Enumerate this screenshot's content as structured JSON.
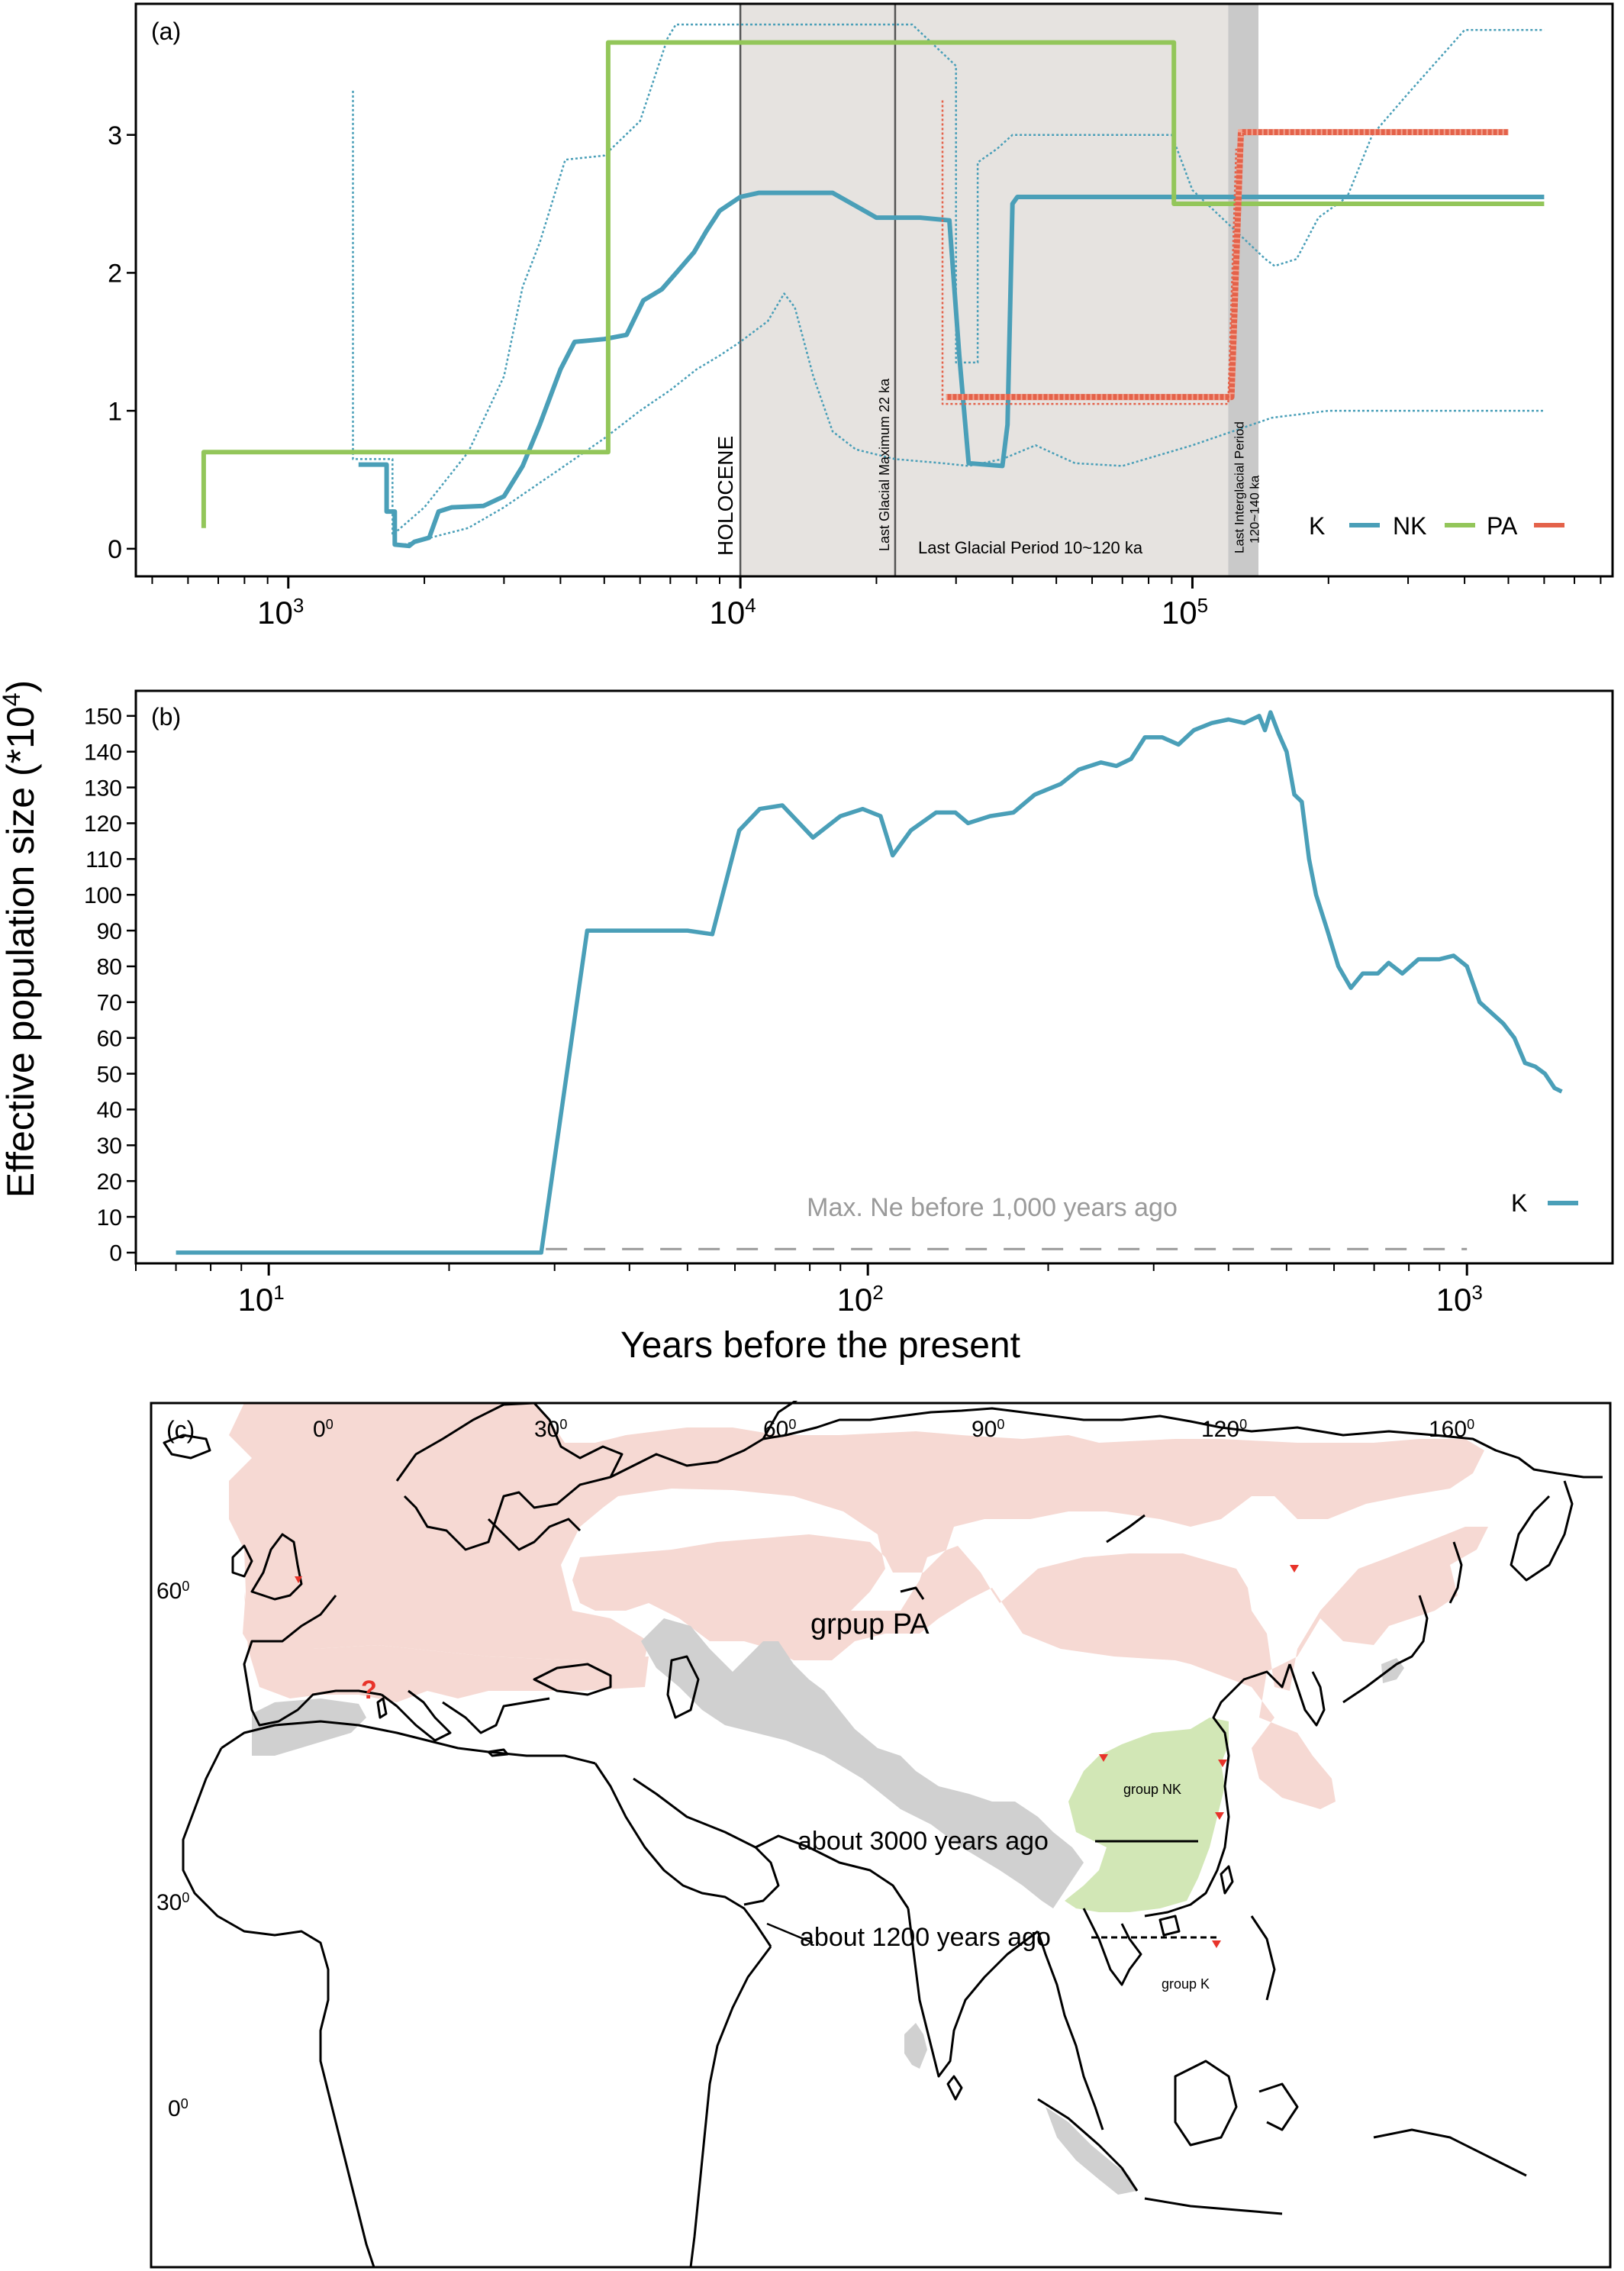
{
  "figure": {
    "ylabel_shared": "Effective population size (*10",
    "ylabel_shared_sup": "4",
    "ylabel_shared_end": ")",
    "xlabel_shared": "Years before the present"
  },
  "chart_data": [
    {
      "panel": "(a)",
      "type": "line",
      "x_scale": "log",
      "xlim": [
        460,
        850000
      ],
      "ylim": [
        -0.2,
        3.95
      ],
      "xticks": [
        {
          "value": 1000,
          "base": "10",
          "exp": "3"
        },
        {
          "value": 10000,
          "base": "10",
          "exp": "4"
        },
        {
          "value": 100000,
          "base": "10",
          "exp": "5"
        }
      ],
      "yticks": [
        0,
        1,
        2,
        3
      ],
      "colors": {
        "K": "#4a9fb8",
        "NK": "#93c65a",
        "PA": "#e4624a",
        "shade": "#e6e3e0",
        "shade_dark": "#c9c9c9"
      },
      "shaded_regions": [
        {
          "from": 10000,
          "to": 120000,
          "label": "Last Glacial Period 10~120 ka"
        },
        {
          "from": 120000,
          "to": 140000,
          "label_line1": "Last Interglacial Period",
          "label_line2": "120~140 ka"
        }
      ],
      "vlines": [
        {
          "x": 10000,
          "label": "HOLOCENE"
        },
        {
          "x": 22000,
          "label": "Last Glacial Maximum 22 ka"
        }
      ],
      "legend": [
        "K",
        "NK",
        "PA"
      ],
      "series": [
        {
          "name": "K",
          "style": "solid",
          "points": [
            [
              1430,
              0.61
            ],
            [
              1650,
              0.61
            ],
            [
              1650,
              0.27
            ],
            [
              1720,
              0.27
            ],
            [
              1720,
              0.03
            ],
            [
              1850,
              0.02
            ],
            [
              1900,
              0.05
            ],
            [
              2050,
              0.08
            ],
            [
              2150,
              0.27
            ],
            [
              2300,
              0.3
            ],
            [
              2700,
              0.31
            ],
            [
              3000,
              0.38
            ],
            [
              3300,
              0.6
            ],
            [
              3600,
              0.9
            ],
            [
              4000,
              1.3
            ],
            [
              4300,
              1.5
            ],
            [
              5000,
              1.52
            ],
            [
              5600,
              1.55
            ],
            [
              6100,
              1.8
            ],
            [
              6700,
              1.88
            ],
            [
              7300,
              2.02
            ],
            [
              7900,
              2.15
            ],
            [
              8400,
              2.3
            ],
            [
              9000,
              2.45
            ],
            [
              10000,
              2.55
            ],
            [
              11000,
              2.58
            ],
            [
              16000,
              2.58
            ],
            [
              20000,
              2.4
            ],
            [
              25000,
              2.4
            ],
            [
              29000,
              2.38
            ],
            [
              30500,
              1.4
            ],
            [
              32000,
              0.62
            ],
            [
              38000,
              0.6
            ],
            [
              39000,
              0.9
            ],
            [
              40000,
              2.5
            ],
            [
              41000,
              2.55
            ],
            [
              70000,
              2.55
            ],
            [
              600000,
              2.55
            ]
          ]
        },
        {
          "name": "K upper CI",
          "style": "dotted",
          "points": [
            [
              1390,
              3.32
            ],
            [
              1390,
              0.65
            ],
            [
              1700,
              0.65
            ],
            [
              1700,
              0.1
            ],
            [
              2000,
              0.3
            ],
            [
              2500,
              0.7
            ],
            [
              3000,
              1.25
            ],
            [
              3300,
              1.9
            ],
            [
              3600,
              2.22
            ],
            [
              4100,
              2.82
            ],
            [
              5000,
              2.85
            ],
            [
              6000,
              3.1
            ],
            [
              6900,
              3.7
            ],
            [
              7200,
              3.8
            ],
            [
              24000,
              3.8
            ],
            [
              30000,
              3.5
            ],
            [
              30000,
              1.35
            ],
            [
              33500,
              1.35
            ],
            [
              33500,
              2.8
            ],
            [
              37000,
              2.9
            ],
            [
              40000,
              3.0
            ],
            [
              90000,
              3.0
            ],
            [
              100000,
              2.6
            ],
            [
              145000,
              2.1
            ],
            [
              152000,
              2.05
            ],
            [
              170000,
              2.1
            ],
            [
              190000,
              2.4
            ],
            [
              220000,
              2.55
            ],
            [
              250000,
              3.0
            ],
            [
              300000,
              3.3
            ],
            [
              400000,
              3.76
            ],
            [
              600000,
              3.76
            ]
          ]
        },
        {
          "name": "K lower CI",
          "style": "dotted",
          "points": [
            [
              1800,
              0.03
            ],
            [
              2500,
              0.15
            ],
            [
              3000,
              0.3
            ],
            [
              3500,
              0.45
            ],
            [
              4000,
              0.58
            ],
            [
              5000,
              0.8
            ],
            [
              6000,
              1.0
            ],
            [
              7000,
              1.15
            ],
            [
              8000,
              1.3
            ],
            [
              9000,
              1.4
            ],
            [
              10000,
              1.5
            ],
            [
              11500,
              1.65
            ],
            [
              12500,
              1.85
            ],
            [
              13200,
              1.75
            ],
            [
              14500,
              1.25
            ],
            [
              16000,
              0.85
            ],
            [
              18000,
              0.72
            ],
            [
              22000,
              0.65
            ],
            [
              28000,
              0.62
            ],
            [
              32000,
              0.6
            ],
            [
              38000,
              0.65
            ],
            [
              45000,
              0.75
            ],
            [
              55000,
              0.62
            ],
            [
              70000,
              0.6
            ],
            [
              100000,
              0.75
            ],
            [
              150000,
              0.95
            ],
            [
              200000,
              1.0
            ],
            [
              300000,
              1.0
            ],
            [
              600000,
              1.0
            ]
          ]
        },
        {
          "name": "NK",
          "style": "solid",
          "points": [
            [
              650,
              0.15
            ],
            [
              650,
              0.7
            ],
            [
              5100,
              0.7
            ],
            [
              5100,
              3.67
            ],
            [
              91000,
              3.67
            ],
            [
              91000,
              2.5
            ],
            [
              600000,
              2.5
            ]
          ]
        },
        {
          "name": "PA",
          "style": "hatched",
          "points": [
            [
              28500,
              1.1
            ],
            [
              122000,
              1.1
            ],
            [
              128000,
              3.02
            ],
            [
              500000,
              3.02
            ]
          ]
        },
        {
          "name": "PA CI",
          "style": "dotted",
          "points": [
            [
              28000,
              3.25
            ],
            [
              28000,
              1.05
            ],
            [
              120000,
              1.05
            ],
            [
              125000,
              2.9
            ]
          ]
        }
      ]
    },
    {
      "panel": "(b)",
      "type": "line",
      "x_scale": "log",
      "xlim": [
        6,
        1750
      ],
      "ylim": [
        -3,
        157
      ],
      "xticks": [
        {
          "value": 10,
          "base": "10",
          "exp": "1"
        },
        {
          "value": 100,
          "base": "10",
          "exp": "2"
        },
        {
          "value": 1000,
          "base": "10",
          "exp": "3"
        }
      ],
      "yticks": [
        0,
        10,
        20,
        30,
        40,
        50,
        60,
        70,
        80,
        90,
        100,
        110,
        120,
        130,
        140,
        150
      ],
      "annotation": "Max. Ne before 1,000 years ago",
      "reference_line": {
        "value": 1,
        "from": 29,
        "to": 1000
      },
      "legend": [
        "K"
      ],
      "series": [
        {
          "name": "K",
          "points": [
            [
              7,
              0
            ],
            [
              28.5,
              0
            ],
            [
              34,
              90
            ],
            [
              50,
              90
            ],
            [
              55,
              89
            ],
            [
              61,
              118
            ],
            [
              66,
              124
            ],
            [
              72,
              125
            ],
            [
              81,
              116
            ],
            [
              90,
              122
            ],
            [
              98,
              124
            ],
            [
              105,
              122
            ],
            [
              110,
              111
            ],
            [
              118,
              118
            ],
            [
              130,
              123
            ],
            [
              140,
              123
            ],
            [
              147,
              120
            ],
            [
              160,
              122
            ],
            [
              175,
              123
            ],
            [
              190,
              128
            ],
            [
              210,
              131
            ],
            [
              225,
              135
            ],
            [
              245,
              137
            ],
            [
              260,
              136
            ],
            [
              275,
              138
            ],
            [
              290,
              144
            ],
            [
              310,
              144
            ],
            [
              330,
              142
            ],
            [
              350,
              146
            ],
            [
              375,
              148
            ],
            [
              400,
              149
            ],
            [
              425,
              148
            ],
            [
              450,
              150
            ],
            [
              460,
              146
            ],
            [
              470,
              151
            ],
            [
              485,
              145
            ],
            [
              500,
              140
            ],
            [
              515,
              128
            ],
            [
              530,
              126
            ],
            [
              545,
              110
            ],
            [
              560,
              100
            ],
            [
              585,
              90
            ],
            [
              610,
              80
            ],
            [
              640,
              74
            ],
            [
              670,
              78
            ],
            [
              710,
              78
            ],
            [
              740,
              81
            ],
            [
              780,
              78
            ],
            [
              830,
              82
            ],
            [
              900,
              82
            ],
            [
              950,
              83
            ],
            [
              1000,
              80
            ],
            [
              1050,
              70
            ],
            [
              1150,
              64
            ],
            [
              1200,
              60
            ],
            [
              1250,
              53
            ],
            [
              1300,
              52
            ],
            [
              1350,
              50
            ],
            [
              1400,
              46
            ],
            [
              1440,
              45
            ]
          ]
        }
      ]
    }
  ],
  "map": {
    "panel": "(c)",
    "lon_labels": [
      "0",
      "30",
      "60",
      "90",
      "120",
      "160"
    ],
    "lat_labels": [
      "60",
      "30",
      "0"
    ],
    "degree_symbol": "0",
    "region_PA_label": "grpup PA",
    "region_NK_label": "group NK",
    "region_K_label": "group K",
    "question_mark": "?",
    "annotation_3000": "about 3000 years ago",
    "annotation_1200": "about 1200 years ago",
    "colors": {
      "PA": "#f6d9d3",
      "NK": "#d2e7b6",
      "grey": "#d0d0d0",
      "marker": "#e8332a"
    }
  }
}
